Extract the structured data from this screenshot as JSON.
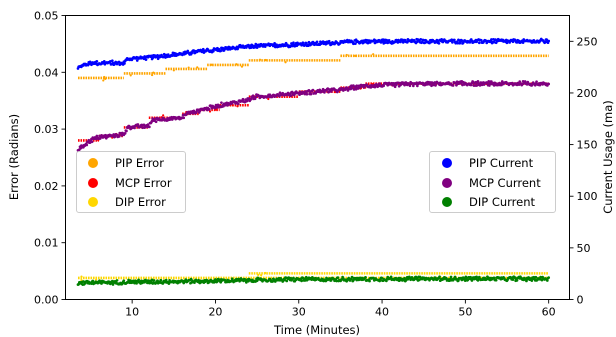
{
  "chart_data": {
    "type": "scatter",
    "title": "",
    "xlabel": "Time (Minutes)",
    "ylabel": "Error (Radians)",
    "y2label": "Current Usage (ma)",
    "xlim": [
      2,
      62.5
    ],
    "ylim": [
      0,
      0.05
    ],
    "y2lim": [
      0,
      275
    ],
    "xticks": [
      10,
      20,
      30,
      40,
      50,
      60
    ],
    "yticks": [
      0.0,
      0.01,
      0.02,
      0.03,
      0.04,
      0.05
    ],
    "ytick_labels": [
      "0.00",
      "0.01",
      "0.02",
      "0.03",
      "0.04",
      "0.05"
    ],
    "y2ticks": [
      0,
      50,
      100,
      150,
      200,
      250
    ],
    "grid": false,
    "legend_left_placement": "center-left",
    "legend_right_placement": "center-right",
    "error_series": [
      {
        "name": "PIP Error",
        "axis": "left",
        "color": "#FFA500",
        "segments": [
          {
            "x": [
              3.5,
              9
            ],
            "y": 0.039
          },
          {
            "x": [
              9,
              14
            ],
            "y": 0.0398
          },
          {
            "x": [
              14,
              19
            ],
            "y": 0.0406
          },
          {
            "x": [
              19,
              24
            ],
            "y": 0.0413
          },
          {
            "x": [
              24,
              35
            ],
            "y": 0.0421
          },
          {
            "x": [
              35,
              60
            ],
            "y": 0.0429
          }
        ]
      },
      {
        "name": "MCP Error",
        "axis": "left",
        "color": "#FF0000",
        "segments": [
          {
            "x": [
              3.5,
              6
            ],
            "y": 0.028
          },
          {
            "x": [
              6,
              9
            ],
            "y": 0.0288
          },
          {
            "x": [
              9,
              12
            ],
            "y": 0.0303
          },
          {
            "x": [
              12,
              16
            ],
            "y": 0.032
          },
          {
            "x": [
              16,
              18
            ],
            "y": 0.0327
          },
          {
            "x": [
              18,
              20.5
            ],
            "y": 0.0334
          },
          {
            "x": [
              20.5,
              24
            ],
            "y": 0.0342
          },
          {
            "x": [
              24,
              30
            ],
            "y": 0.0357
          },
          {
            "x": [
              30,
              35
            ],
            "y": 0.0366
          },
          {
            "x": [
              35,
              38
            ],
            "y": 0.0373
          },
          {
            "x": [
              38,
              60
            ],
            "y": 0.038
          }
        ]
      },
      {
        "name": "DIP Error",
        "axis": "left",
        "color": "#FFD700",
        "segments": [
          {
            "x": [
              3.5,
              60
            ],
            "y": 0.0038
          },
          {
            "x": [
              24,
              60
            ],
            "y": 0.0046
          }
        ]
      }
    ],
    "current_series": [
      {
        "name": "PIP Current",
        "axis": "right",
        "color": "#0000FF",
        "points": [
          [
            3.5,
            225
          ],
          [
            5,
            229
          ],
          [
            9,
            229
          ],
          [
            9.5,
            233
          ],
          [
            13,
            235
          ],
          [
            18,
            240
          ],
          [
            24,
            245
          ],
          [
            30,
            247
          ],
          [
            38,
            250
          ],
          [
            50,
            250
          ],
          [
            60,
            250
          ]
        ]
      },
      {
        "name": "MCP Current",
        "axis": "right",
        "color": "#800080",
        "points": [
          [
            3.5,
            145
          ],
          [
            5,
            154
          ],
          [
            6,
            157
          ],
          [
            9,
            160
          ],
          [
            9.5,
            167
          ],
          [
            12,
            168
          ],
          [
            12.5,
            174
          ],
          [
            16,
            176
          ],
          [
            16.5,
            180
          ],
          [
            18,
            183
          ],
          [
            19,
            185
          ],
          [
            21,
            189
          ],
          [
            24,
            193
          ],
          [
            24.5,
            196
          ],
          [
            30,
            200
          ],
          [
            35,
            203
          ],
          [
            38,
            207
          ],
          [
            45,
            209
          ],
          [
            60,
            209
          ]
        ]
      },
      {
        "name": "DIP Current",
        "axis": "right",
        "color": "#008000",
        "points": [
          [
            3.5,
            16
          ],
          [
            10,
            17
          ],
          [
            20,
            18
          ],
          [
            30,
            19.5
          ],
          [
            45,
            20
          ],
          [
            60,
            20
          ]
        ]
      }
    ]
  }
}
